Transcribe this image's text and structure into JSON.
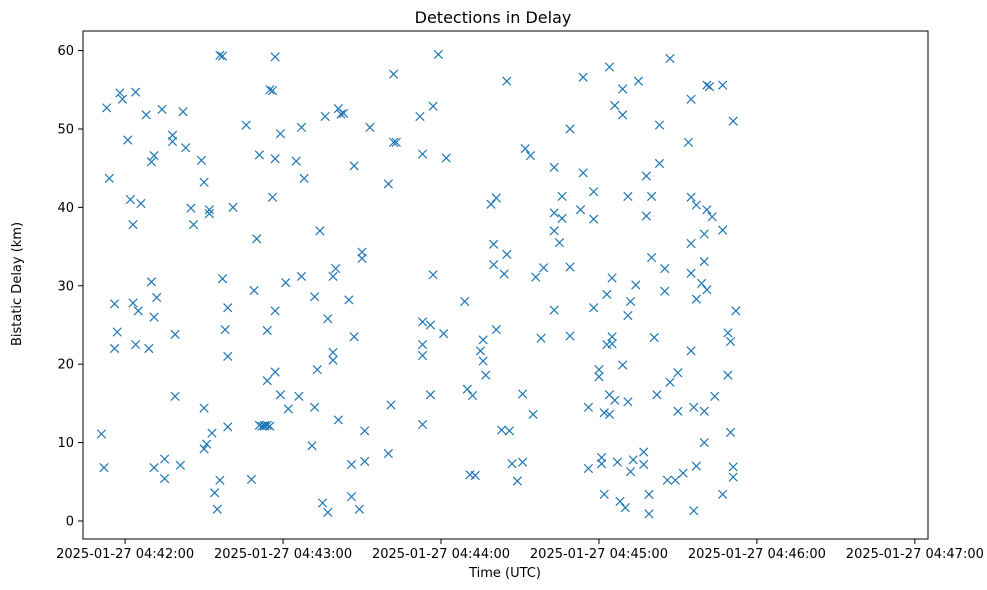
{
  "chart_data": {
    "type": "scatter",
    "title": "Detections in Delay",
    "xlabel": "Time (UTC)",
    "ylabel": "Bistatic Delay (km)",
    "marker": "x",
    "color": "#1f77b4",
    "x_ticks": [
      "2025-01-27 04:42:00",
      "2025-01-27 04:43:00",
      "2025-01-27 04:44:00",
      "2025-01-27 04:45:00",
      "2025-01-27 04:46:00",
      "2025-01-27 04:47:00"
    ],
    "y_ticks": [
      0,
      10,
      20,
      30,
      40,
      50,
      60
    ],
    "xlim": [
      "2025-01-27 04:41:44",
      "2025-01-27 04:47:05"
    ],
    "ylim": [
      -2.3,
      62.5
    ],
    "grid": false,
    "points": [
      [
        "04:41:51",
        11.1
      ],
      [
        "04:41:52",
        6.8
      ],
      [
        "04:41:53",
        52.7
      ],
      [
        "04:41:54",
        43.7
      ],
      [
        "04:41:56",
        27.7
      ],
      [
        "04:41:56",
        22.0
      ],
      [
        "04:41:57",
        24.1
      ],
      [
        "04:41:58",
        54.6
      ],
      [
        "04:41:59",
        53.8
      ],
      [
        "04:42:01",
        48.6
      ],
      [
        "04:42:02",
        41.0
      ],
      [
        "04:42:03",
        37.8
      ],
      [
        "04:42:03",
        27.8
      ],
      [
        "04:42:04",
        54.7
      ],
      [
        "04:42:04",
        22.5
      ],
      [
        "04:42:05",
        26.8
      ],
      [
        "04:42:06",
        40.5
      ],
      [
        "04:42:08",
        51.8
      ],
      [
        "04:42:09",
        22.0
      ],
      [
        "04:42:10",
        45.8
      ],
      [
        "04:42:10",
        30.5
      ],
      [
        "04:42:11",
        46.6
      ],
      [
        "04:42:11",
        26.0
      ],
      [
        "04:42:11",
        6.8
      ],
      [
        "04:42:12",
        28.5
      ],
      [
        "04:42:14",
        52.5
      ],
      [
        "04:42:15",
        7.9
      ],
      [
        "04:42:15",
        5.4
      ],
      [
        "04:42:18",
        49.2
      ],
      [
        "04:42:18",
        48.4
      ],
      [
        "04:42:19",
        15.9
      ],
      [
        "04:42:19",
        23.8
      ],
      [
        "04:42:21",
        7.1
      ],
      [
        "04:42:22",
        52.2
      ],
      [
        "04:42:23",
        47.6
      ],
      [
        "04:42:25",
        39.9
      ],
      [
        "04:42:26",
        37.8
      ],
      [
        "04:42:29",
        46.0
      ],
      [
        "04:42:30",
        43.2
      ],
      [
        "04:42:30",
        14.4
      ],
      [
        "04:42:30",
        9.2
      ],
      [
        "04:42:31",
        9.8
      ],
      [
        "04:42:32",
        39.7
      ],
      [
        "04:42:32",
        39.2
      ],
      [
        "04:42:33",
        11.2
      ],
      [
        "04:42:34",
        3.6
      ],
      [
        "04:42:35",
        1.5
      ],
      [
        "04:42:36",
        59.4
      ],
      [
        "04:42:36",
        5.2
      ],
      [
        "04:42:37",
        59.3
      ],
      [
        "04:42:37",
        30.9
      ],
      [
        "04:42:38",
        24.4
      ],
      [
        "04:42:39",
        27.2
      ],
      [
        "04:42:39",
        21.0
      ],
      [
        "04:42:39",
        12.0
      ],
      [
        "04:42:41",
        40.0
      ],
      [
        "04:42:46",
        50.5
      ],
      [
        "04:42:48",
        5.3
      ],
      [
        "04:42:49",
        29.4
      ],
      [
        "04:42:50",
        36.0
      ],
      [
        "04:42:51",
        46.7
      ],
      [
        "04:42:51",
        12.2
      ],
      [
        "04:42:52",
        12.1
      ],
      [
        "04:42:53",
        12.2
      ],
      [
        "04:42:53",
        12.1
      ],
      [
        "04:42:54",
        12.2
      ],
      [
        "04:42:54",
        24.3
      ],
      [
        "04:42:54",
        17.9
      ],
      [
        "04:42:55",
        55.0
      ],
      [
        "04:42:55",
        12.1
      ],
      [
        "04:42:56",
        54.9
      ],
      [
        "04:42:56",
        41.3
      ],
      [
        "04:42:57",
        59.2
      ],
      [
        "04:42:57",
        46.2
      ],
      [
        "04:42:57",
        26.8
      ],
      [
        "04:42:57",
        19.0
      ],
      [
        "04:42:59",
        49.4
      ],
      [
        "04:42:59",
        16.1
      ],
      [
        "04:43:01",
        30.4
      ],
      [
        "04:43:02",
        14.3
      ],
      [
        "04:43:05",
        45.9
      ],
      [
        "04:43:06",
        15.9
      ],
      [
        "04:43:07",
        31.2
      ],
      [
        "04:43:07",
        50.2
      ],
      [
        "04:43:08",
        43.7
      ],
      [
        "04:43:11",
        9.6
      ],
      [
        "04:43:12",
        28.6
      ],
      [
        "04:43:12",
        14.5
      ],
      [
        "04:43:13",
        19.3
      ],
      [
        "04:43:14",
        37.0
      ],
      [
        "04:43:15",
        2.3
      ],
      [
        "04:43:16",
        51.6
      ],
      [
        "04:43:17",
        1.1
      ],
      [
        "04:43:17",
        25.8
      ],
      [
        "04:43:19",
        31.2
      ],
      [
        "04:43:19",
        21.5
      ],
      [
        "04:43:19",
        20.5
      ],
      [
        "04:43:20",
        32.2
      ],
      [
        "04:43:21",
        52.6
      ],
      [
        "04:43:21",
        12.9
      ],
      [
        "04:43:22",
        51.9
      ],
      [
        "04:43:23",
        52.0
      ],
      [
        "04:43:25",
        28.2
      ],
      [
        "04:43:26",
        7.2
      ],
      [
        "04:43:26",
        3.1
      ],
      [
        "04:43:27",
        45.3
      ],
      [
        "04:43:27",
        23.5
      ],
      [
        "04:43:29",
        1.5
      ],
      [
        "04:43:30",
        34.3
      ],
      [
        "04:43:30",
        33.5
      ],
      [
        "04:43:31",
        7.6
      ],
      [
        "04:43:31",
        11.5
      ],
      [
        "04:43:33",
        50.2
      ],
      [
        "04:43:40",
        43.0
      ],
      [
        "04:43:40",
        8.6
      ],
      [
        "04:43:41",
        14.8
      ],
      [
        "04:43:42",
        48.3
      ],
      [
        "04:43:42",
        57.0
      ],
      [
        "04:43:43",
        48.3
      ],
      [
        "04:43:52",
        51.6
      ],
      [
        "04:43:53",
        46.8
      ],
      [
        "04:43:53",
        25.4
      ],
      [
        "04:43:53",
        22.5
      ],
      [
        "04:43:53",
        21.1
      ],
      [
        "04:43:53",
        12.3
      ],
      [
        "04:43:56",
        25.0
      ],
      [
        "04:43:56",
        16.1
      ],
      [
        "04:43:57",
        52.9
      ],
      [
        "04:43:57",
        31.4
      ],
      [
        "04:43:59",
        59.5
      ],
      [
        "04:44:01",
        23.9
      ],
      [
        "04:44:02",
        46.3
      ],
      [
        "04:44:09",
        28.0
      ],
      [
        "04:44:10",
        16.8
      ],
      [
        "04:44:11",
        5.9
      ],
      [
        "04:44:12",
        16.0
      ],
      [
        "04:44:13",
        5.8
      ],
      [
        "04:44:15",
        21.7
      ],
      [
        "04:44:16",
        20.4
      ],
      [
        "04:44:16",
        23.1
      ],
      [
        "04:44:17",
        18.6
      ],
      [
        "04:44:19",
        40.4
      ],
      [
        "04:44:20",
        32.7
      ],
      [
        "04:44:20",
        35.3
      ],
      [
        "04:44:21",
        41.2
      ],
      [
        "04:44:21",
        24.4
      ],
      [
        "04:44:23",
        11.6
      ],
      [
        "04:44:24",
        31.5
      ],
      [
        "04:44:25",
        56.1
      ],
      [
        "04:44:25",
        34.0
      ],
      [
        "04:44:26",
        11.5
      ],
      [
        "04:44:27",
        7.3
      ],
      [
        "04:44:29",
        5.1
      ],
      [
        "04:44:31",
        16.2
      ],
      [
        "04:44:31",
        7.5
      ],
      [
        "04:44:32",
        47.5
      ],
      [
        "04:44:34",
        46.6
      ],
      [
        "04:44:35",
        13.6
      ],
      [
        "04:44:36",
        31.1
      ],
      [
        "04:44:38",
        23.3
      ],
      [
        "04:44:39",
        32.3
      ],
      [
        "04:44:43",
        45.1
      ],
      [
        "04:44:43",
        39.3
      ],
      [
        "04:44:43",
        37.0
      ],
      [
        "04:44:43",
        26.9
      ],
      [
        "04:44:45",
        35.5
      ],
      [
        "04:44:46",
        41.4
      ],
      [
        "04:44:46",
        38.6
      ],
      [
        "04:44:49",
        50.0
      ],
      [
        "04:44:49",
        32.4
      ],
      [
        "04:44:49",
        23.6
      ],
      [
        "04:44:53",
        39.7
      ],
      [
        "04:44:54",
        56.6
      ],
      [
        "04:44:54",
        44.4
      ],
      [
        "04:44:56",
        6.7
      ],
      [
        "04:44:56",
        14.5
      ],
      [
        "04:44:58",
        27.2
      ],
      [
        "04:44:58",
        42.0
      ],
      [
        "04:44:58",
        38.5
      ],
      [
        "04:45:00",
        19.3
      ],
      [
        "04:45:00",
        18.4
      ],
      [
        "04:45:01",
        7.3
      ],
      [
        "04:45:01",
        8.1
      ],
      [
        "04:45:02",
        3.4
      ],
      [
        "04:45:02",
        13.8
      ],
      [
        "04:45:03",
        22.5
      ],
      [
        "04:45:03",
        28.9
      ],
      [
        "04:45:04",
        57.9
      ],
      [
        "04:45:04",
        16.1
      ],
      [
        "04:45:04",
        13.6
      ],
      [
        "04:45:05",
        31.0
      ],
      [
        "04:45:05",
        23.5
      ],
      [
        "04:45:05",
        22.6
      ],
      [
        "04:45:06",
        53.0
      ],
      [
        "04:45:06",
        15.4
      ],
      [
        "04:45:07",
        7.5
      ],
      [
        "04:45:08",
        2.5
      ],
      [
        "04:45:09",
        51.8
      ],
      [
        "04:45:09",
        19.9
      ],
      [
        "04:45:09",
        55.1
      ],
      [
        "04:45:10",
        1.7
      ],
      [
        "04:45:11",
        41.4
      ],
      [
        "04:45:11",
        26.2
      ],
      [
        "04:45:11",
        15.2
      ],
      [
        "04:45:12",
        28.0
      ],
      [
        "04:45:12",
        6.3
      ],
      [
        "04:45:13",
        7.8
      ],
      [
        "04:45:14",
        30.1
      ],
      [
        "04:45:15",
        56.1
      ],
      [
        "04:45:17",
        7.2
      ],
      [
        "04:45:17",
        8.8
      ],
      [
        "04:45:18",
        44.0
      ],
      [
        "04:45:18",
        38.9
      ],
      [
        "04:45:19",
        0.9
      ],
      [
        "04:45:19",
        3.4
      ],
      [
        "04:45:20",
        41.4
      ],
      [
        "04:45:20",
        33.6
      ],
      [
        "04:45:21",
        23.4
      ],
      [
        "04:45:22",
        16.1
      ],
      [
        "04:45:23",
        50.5
      ],
      [
        "04:45:23",
        45.6
      ],
      [
        "04:45:25",
        32.2
      ],
      [
        "04:45:25",
        29.3
      ],
      [
        "04:45:26",
        5.2
      ],
      [
        "04:45:27",
        59.0
      ],
      [
        "04:45:27",
        17.7
      ],
      [
        "04:45:29",
        5.2
      ],
      [
        "04:45:30",
        18.9
      ],
      [
        "04:45:30",
        14.0
      ],
      [
        "04:45:32",
        6.1
      ],
      [
        "04:45:34",
        48.3
      ],
      [
        "04:45:35",
        53.8
      ],
      [
        "04:45:35",
        35.4
      ],
      [
        "04:45:35",
        41.3
      ],
      [
        "04:45:35",
        31.6
      ],
      [
        "04:45:35",
        21.7
      ],
      [
        "04:45:36",
        14.5
      ],
      [
        "04:45:36",
        1.3
      ],
      [
        "04:45:37",
        40.3
      ],
      [
        "04:45:37",
        28.3
      ],
      [
        "04:45:37",
        7.0
      ],
      [
        "04:45:39",
        30.3
      ],
      [
        "04:45:40",
        36.6
      ],
      [
        "04:45:40",
        33.1
      ],
      [
        "04:45:40",
        14.0
      ],
      [
        "04:45:40",
        10.0
      ],
      [
        "04:45:41",
        55.6
      ],
      [
        "04:45:41",
        39.7
      ],
      [
        "04:45:41",
        29.5
      ],
      [
        "04:45:42",
        55.4
      ],
      [
        "04:45:43",
        38.8
      ],
      [
        "04:45:44",
        15.9
      ],
      [
        "04:45:47",
        55.6
      ],
      [
        "04:45:47",
        37.1
      ],
      [
        "04:45:47",
        3.4
      ],
      [
        "04:45:49",
        24.0
      ],
      [
        "04:45:49",
        18.6
      ],
      [
        "04:45:50",
        22.9
      ],
      [
        "04:45:50",
        11.3
      ],
      [
        "04:45:51",
        51.0
      ],
      [
        "04:45:51",
        6.9
      ],
      [
        "04:45:51",
        5.6
      ],
      [
        "04:45:52",
        26.8
      ]
    ]
  }
}
